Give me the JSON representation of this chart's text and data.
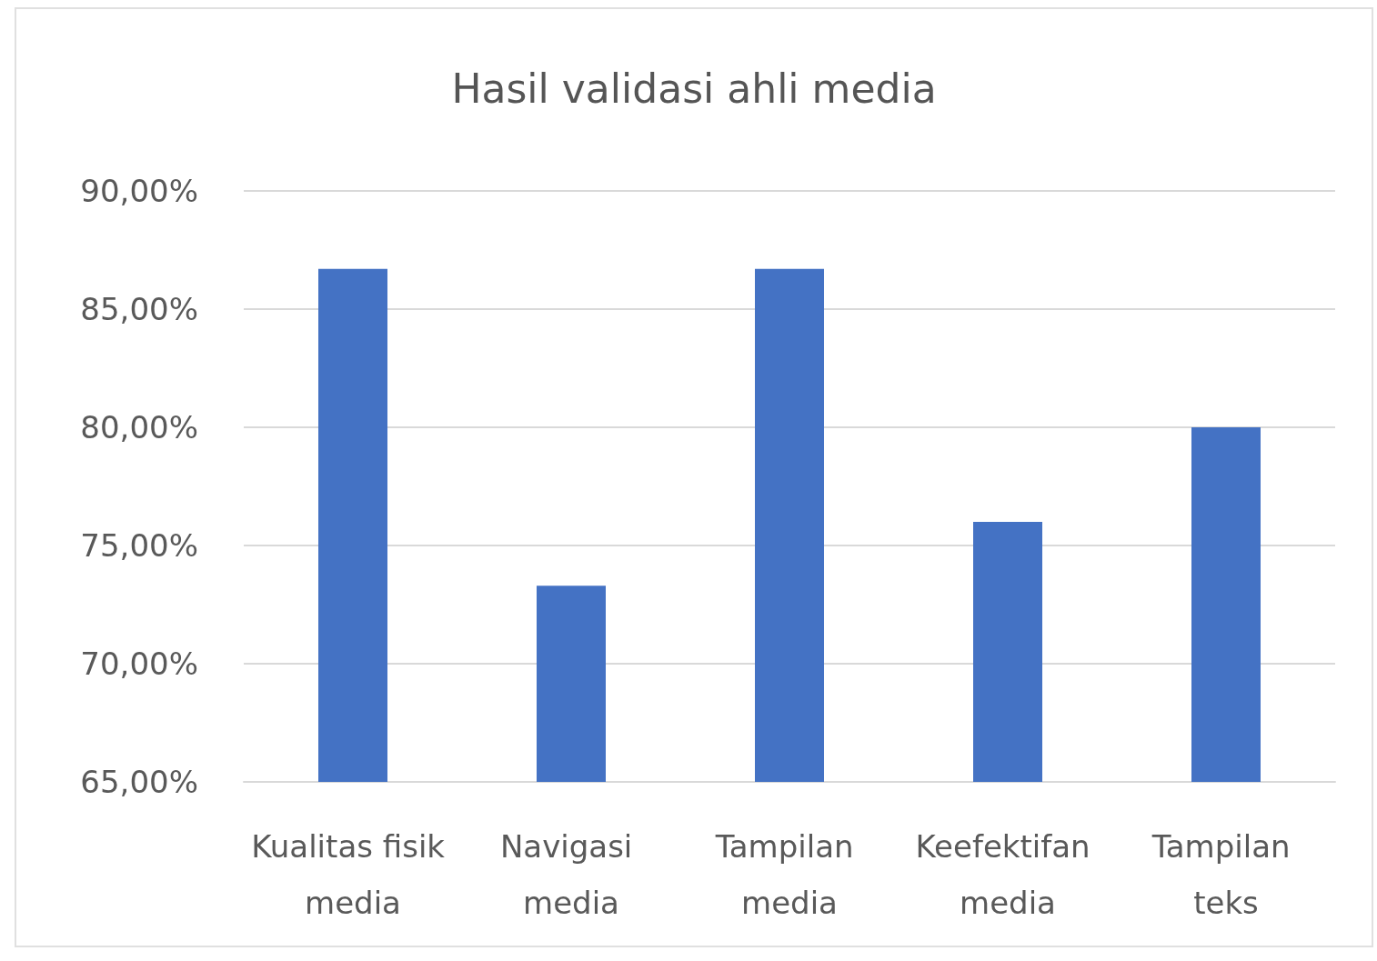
{
  "chart_data": {
    "type": "bar",
    "title": "Hasil validasi ahli media",
    "categories": [
      "Kualitas fisik media",
      "Navigasi media",
      "Tampilan media",
      "Keefektifan media",
      "Tampilan teks"
    ],
    "values": [
      86.7,
      73.3,
      86.7,
      76,
      80
    ],
    "color": "#4472c4",
    "ylim": [
      65,
      90
    ],
    "yticks": [
      {
        "value": 65,
        "label": "65,00%"
      },
      {
        "value": 70,
        "label": "70,00%"
      },
      {
        "value": 75,
        "label": "75,00%"
      },
      {
        "value": 80,
        "label": "80,00%"
      },
      {
        "value": 85,
        "label": "85,00%"
      },
      {
        "value": 90,
        "label": "90,00%"
      }
    ],
    "grid": "y"
  }
}
